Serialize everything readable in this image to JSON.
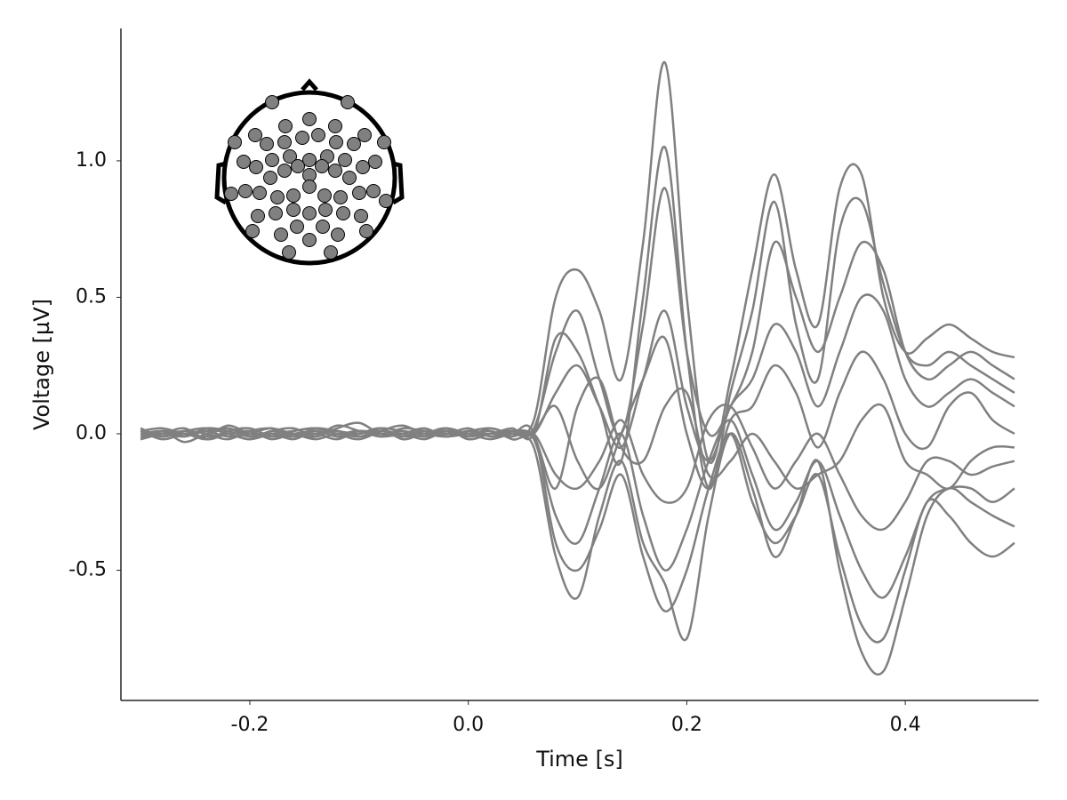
{
  "chart_data": {
    "type": "line",
    "x_label": "Time [s]",
    "y_label": "Voltage [µV]",
    "x": [
      -0.3,
      -0.28,
      -0.26,
      -0.24,
      -0.22,
      -0.2,
      -0.18,
      -0.16,
      -0.14,
      -0.12,
      -0.1,
      -0.08,
      -0.06,
      -0.04,
      -0.02,
      0.0,
      0.02,
      0.04,
      0.06,
      0.08,
      0.1,
      0.12,
      0.14,
      0.16,
      0.18,
      0.2,
      0.22,
      0.24,
      0.26,
      0.28,
      0.3,
      0.32,
      0.34,
      0.36,
      0.38,
      0.4,
      0.42,
      0.44,
      0.46,
      0.48,
      0.5
    ],
    "xlim": [
      -0.318,
      0.522
    ],
    "xticks": [
      -0.2,
      {
        "value": 0,
        "label": "0.0"
      },
      0.2,
      0.4
    ],
    "ylim": [
      -0.977,
      1.485
    ],
    "yticks": [
      -0.5,
      {
        "value": 0,
        "label": "0.0"
      },
      0.5,
      {
        "value": 1,
        "label": "1.0"
      }
    ],
    "series": [
      {
        "color": "#808080",
        "values": [
          0.02,
          -0.01,
          0.01,
          0.0,
          -0.02,
          0.01,
          0.02,
          0.0,
          -0.01,
          0.03,
          0.01,
          -0.01,
          0.0,
          0.02,
          -0.01,
          0.01,
          0.0,
          0.01,
          0.05,
          0.5,
          0.6,
          0.45,
          0.2,
          0.7,
          1.36,
          0.5,
          -0.1,
          0.2,
          0.6,
          0.95,
          0.6,
          0.4,
          0.9,
          0.95,
          0.5,
          0.3,
          0.35,
          0.4,
          0.35,
          0.3,
          0.28
        ]
      },
      {
        "color": "#808080",
        "values": [
          -0.02,
          0.01,
          -0.03,
          0.0,
          0.02,
          -0.01,
          0.0,
          -0.02,
          0.01,
          -0.01,
          0.0,
          0.02,
          -0.02,
          0.0,
          -0.01,
          0.0,
          0.01,
          -0.02,
          -0.05,
          -0.45,
          -0.6,
          -0.3,
          -0.1,
          -0.4,
          -0.55,
          -0.75,
          -0.3,
          0.0,
          -0.2,
          -0.45,
          -0.3,
          -0.1,
          -0.5,
          -0.8,
          -0.87,
          -0.6,
          -0.3,
          -0.2,
          -0.25,
          -0.3,
          -0.34
        ]
      },
      {
        "color": "#808080",
        "values": [
          0.01,
          0.02,
          0.0,
          -0.01,
          0.03,
          0.0,
          -0.01,
          0.01,
          0.02,
          0.0,
          -0.02,
          0.01,
          0.03,
          0.0,
          0.01,
          -0.01,
          0.02,
          0.0,
          0.02,
          0.3,
          0.45,
          0.2,
          0.0,
          0.4,
          0.9,
          0.3,
          0.0,
          0.1,
          0.3,
          0.7,
          0.5,
          0.3,
          0.5,
          0.7,
          0.6,
          0.3,
          0.2,
          0.25,
          0.3,
          0.25,
          0.2
        ]
      },
      {
        "color": "#808080",
        "values": [
          -0.01,
          0.0,
          0.02,
          -0.02,
          0.0,
          0.01,
          -0.02,
          0.0,
          0.0,
          0.01,
          -0.01,
          0.0,
          -0.01,
          0.01,
          0.0,
          0.02,
          -0.01,
          0.0,
          -0.02,
          -0.3,
          -0.4,
          -0.2,
          0.0,
          -0.3,
          -0.5,
          -0.35,
          -0.1,
          0.05,
          -0.15,
          -0.35,
          -0.25,
          -0.1,
          -0.3,
          -0.5,
          -0.6,
          -0.45,
          -0.25,
          -0.2,
          -0.2,
          -0.25,
          -0.2
        ]
      },
      {
        "color": "#808080",
        "values": [
          0.0,
          0.01,
          -0.01,
          0.02,
          0.01,
          -0.01,
          0.01,
          0.02,
          -0.01,
          0.02,
          0.04,
          0.0,
          0.01,
          -0.01,
          0.02,
          0.0,
          0.0,
          0.01,
          0.0,
          0.15,
          0.25,
          0.1,
          -0.05,
          0.2,
          0.45,
          0.1,
          -0.1,
          0.1,
          0.2,
          0.4,
          0.3,
          0.1,
          0.3,
          0.5,
          0.45,
          0.2,
          0.1,
          0.15,
          0.2,
          0.15,
          0.1
        ]
      },
      {
        "color": "#808080",
        "values": [
          0.01,
          -0.02,
          0.0,
          0.01,
          -0.01,
          0.0,
          0.02,
          -0.01,
          0.0,
          -0.02,
          0.01,
          0.0,
          0.0,
          -0.02,
          0.01,
          -0.01,
          0.0,
          -0.01,
          0.0,
          -0.15,
          -0.2,
          -0.1,
          0.05,
          -0.15,
          -0.25,
          -0.2,
          0.05,
          0.1,
          -0.05,
          -0.2,
          -0.1,
          0.0,
          -0.15,
          -0.3,
          -0.35,
          -0.25,
          -0.1,
          -0.1,
          -0.15,
          -0.12,
          -0.1
        ]
      },
      {
        "color": "#808080",
        "values": [
          -0.02,
          0.0,
          0.01,
          0.02,
          0.0,
          -0.02,
          0.0,
          0.01,
          0.02,
          0.0,
          0.01,
          -0.01,
          0.02,
          0.01,
          0.0,
          0.01,
          0.02,
          0.0,
          0.01,
          0.1,
          -0.1,
          -0.2,
          0.0,
          0.2,
          0.35,
          0.0,
          -0.2,
          0.05,
          0.1,
          0.25,
          0.15,
          -0.05,
          0.15,
          0.3,
          0.2,
          0.0,
          -0.05,
          0.1,
          0.15,
          0.05,
          0.0
        ]
      },
      {
        "color": "#808080",
        "values": [
          0.0,
          -0.01,
          0.0,
          -0.02,
          0.01,
          0.02,
          -0.01,
          0.0,
          0.01,
          -0.01,
          0.0,
          0.01,
          -0.01,
          0.0,
          0.02,
          -0.02,
          0.0,
          0.01,
          -0.01,
          -0.2,
          0.1,
          0.2,
          -0.05,
          -0.1,
          0.1,
          0.15,
          -0.15,
          -0.1,
          0.0,
          -0.1,
          -0.2,
          -0.15,
          -0.1,
          0.05,
          0.1,
          -0.1,
          -0.15,
          -0.2,
          -0.1,
          -0.05,
          -0.05
        ]
      },
      {
        "color": "#808080",
        "values": [
          0.01,
          0.0,
          -0.01,
          0.01,
          0.02,
          0.0,
          0.0,
          -0.01,
          0.02,
          0.01,
          0.0,
          0.02,
          0.01,
          0.0,
          -0.01,
          0.01,
          0.0,
          0.02,
          0.0,
          0.35,
          0.3,
          0.1,
          -0.1,
          0.5,
          1.05,
          0.3,
          -0.2,
          0.15,
          0.45,
          0.85,
          0.4,
          0.2,
          0.75,
          0.85,
          0.55,
          0.3,
          0.25,
          0.3,
          0.25,
          0.2,
          0.15
        ]
      },
      {
        "color": "#808080",
        "values": [
          -0.01,
          0.01,
          0.0,
          -0.01,
          0.0,
          -0.02,
          0.01,
          0.0,
          -0.02,
          0.0,
          -0.01,
          0.01,
          0.0,
          -0.01,
          0.0,
          0.0,
          -0.02,
          0.0,
          0.0,
          -0.4,
          -0.5,
          -0.35,
          -0.15,
          -0.45,
          -0.65,
          -0.5,
          -0.2,
          0.0,
          -0.25,
          -0.4,
          -0.3,
          -0.15,
          -0.45,
          -0.7,
          -0.75,
          -0.5,
          -0.25,
          -0.3,
          -0.4,
          -0.45,
          -0.4
        ]
      }
    ]
  }
}
